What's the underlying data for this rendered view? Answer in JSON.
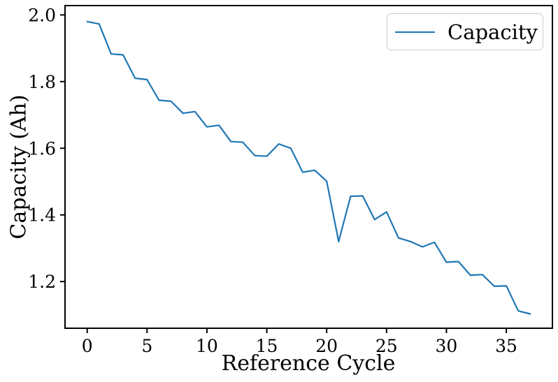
{
  "chart_data": {
    "type": "line",
    "title": "",
    "xlabel": "Reference Cycle",
    "ylabel": "Capacity (Ah)",
    "legend": {
      "label": "Capacity",
      "position": "upper right"
    },
    "line_color": "#1f77b4",
    "axis_color": "#000000",
    "grid": false,
    "x": [
      0,
      1,
      2,
      3,
      4,
      5,
      6,
      7,
      8,
      9,
      10,
      11,
      12,
      13,
      14,
      15,
      16,
      17,
      18,
      19,
      20,
      21,
      22,
      23,
      24,
      25,
      26,
      27,
      28,
      29,
      30,
      31,
      32,
      33,
      34,
      35,
      36,
      37
    ],
    "values": [
      1.98,
      1.973,
      1.883,
      1.88,
      1.81,
      1.806,
      1.744,
      1.741,
      1.705,
      1.71,
      1.664,
      1.669,
      1.62,
      1.618,
      1.578,
      1.576,
      1.613,
      1.6,
      1.528,
      1.534,
      1.501,
      1.32,
      1.456,
      1.457,
      1.386,
      1.409,
      1.331,
      1.32,
      1.304,
      1.318,
      1.258,
      1.26,
      1.219,
      1.221,
      1.186,
      1.187,
      1.112,
      1.103
    ],
    "xlim": [
      -1.85,
      38.85
    ],
    "ylim": [
      1.06,
      2.028
    ],
    "xticks": [
      0,
      5,
      10,
      15,
      20,
      25,
      30,
      35
    ],
    "xtick_labels": [
      "0",
      "5",
      "10",
      "15",
      "20",
      "25",
      "30",
      "35"
    ],
    "yticks": [
      2.0,
      1.8,
      1.6,
      1.4,
      1.2
    ],
    "ytick_labels": [
      "2.0",
      "1.8",
      "1.6",
      "1.4",
      "1.2"
    ]
  }
}
